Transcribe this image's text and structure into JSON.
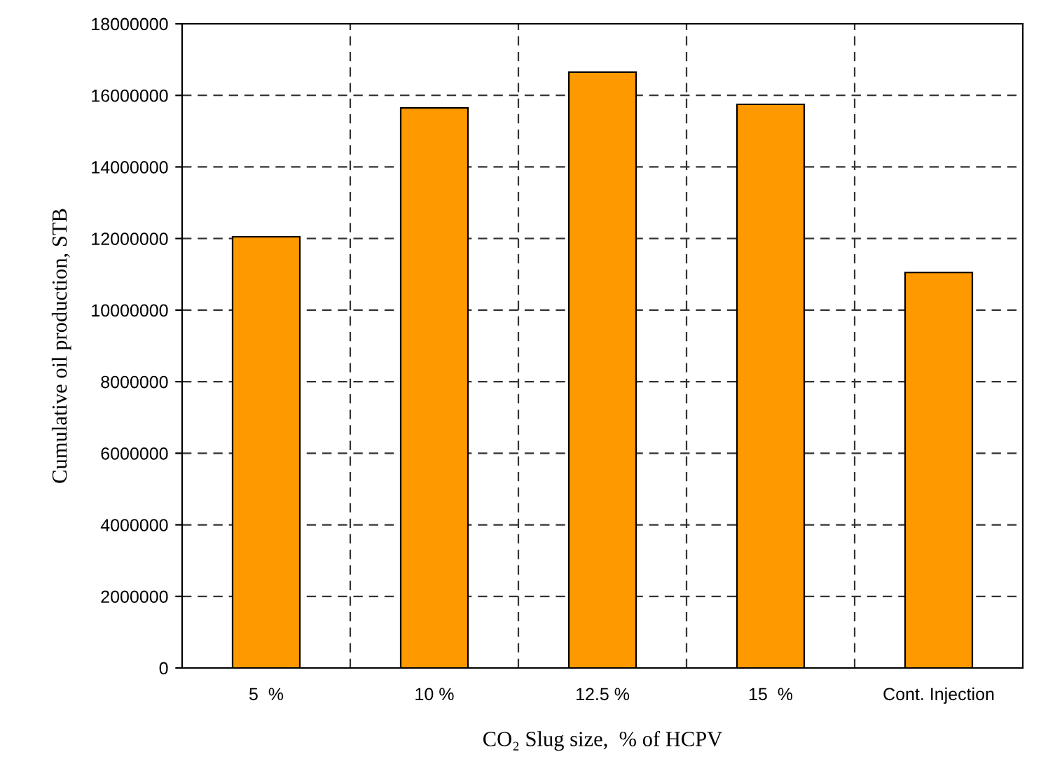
{
  "chart_data": {
    "type": "bar",
    "xlabel": "CO₂ Slug size,  % of HCPV",
    "ylabel": "Cumulative oil production, STB",
    "categories": [
      "5  %",
      "10 %",
      "12.5 %",
      "15  %",
      "Cont. Injection"
    ],
    "values": [
      12050000,
      15650000,
      16650000,
      15750000,
      11050000
    ],
    "color": "#ff9900",
    "ylim": [
      0,
      18000000
    ],
    "yticks": [
      0,
      2000000,
      4000000,
      6000000,
      8000000,
      10000000,
      12000000,
      14000000,
      16000000,
      18000000
    ],
    "grid": true
  }
}
